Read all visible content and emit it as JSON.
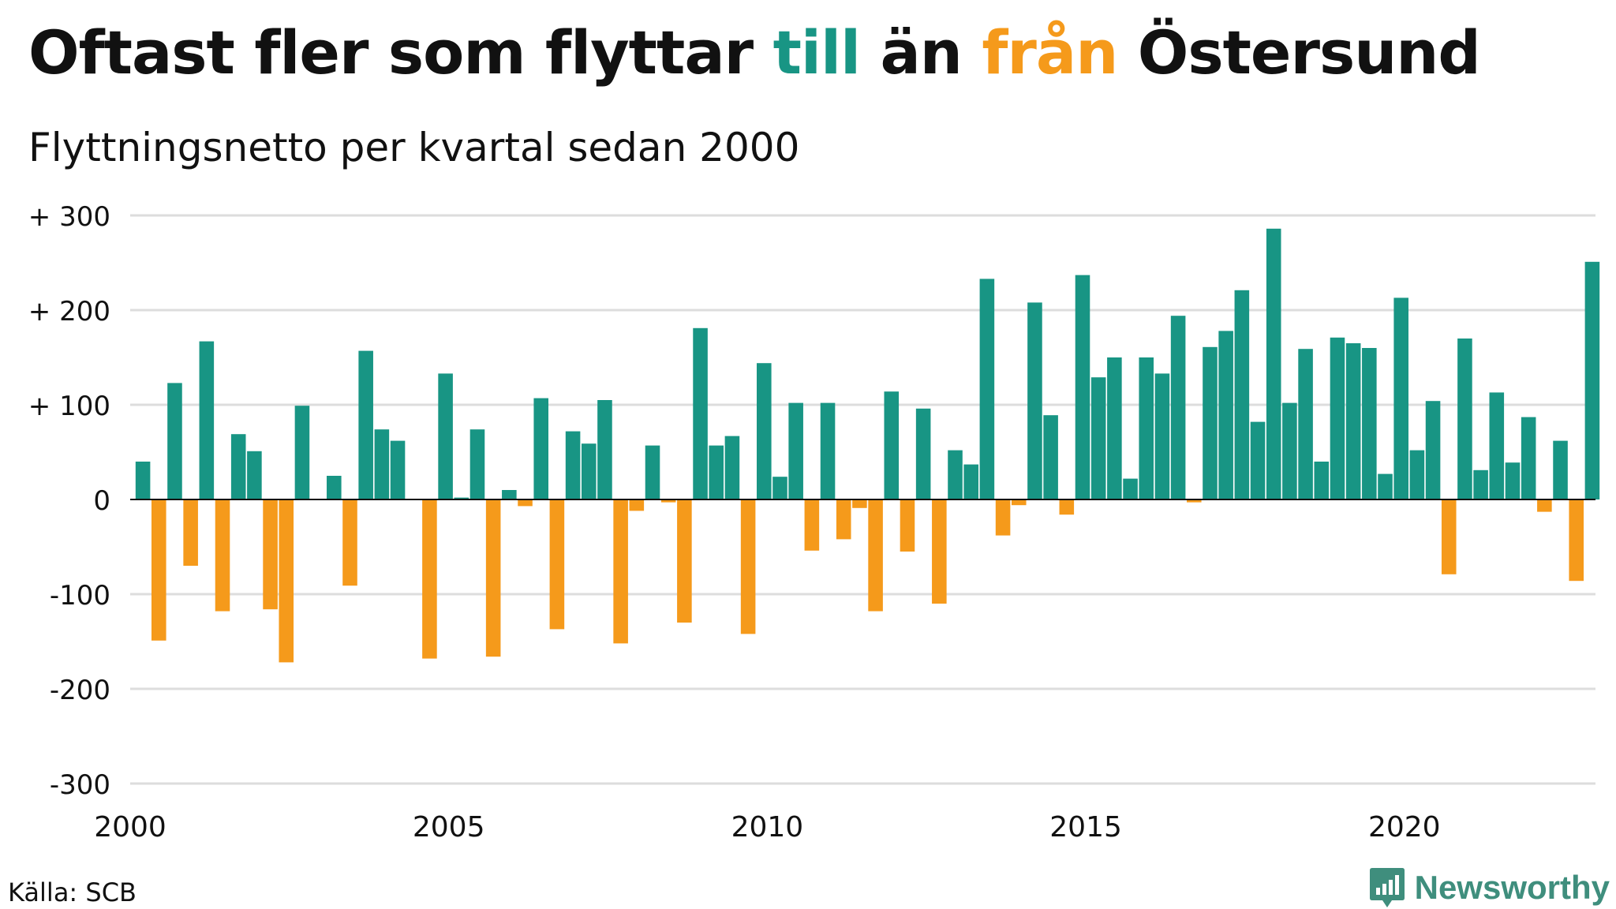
{
  "title": {
    "part1": "Oftast fler som flyttar ",
    "highlight_in": "till",
    "part2": " än ",
    "highlight_out": "från",
    "part3": " Östersund"
  },
  "subtitle": "Flyttningsnetto per kvartal sedan 2000",
  "source": "Källa: SCB",
  "brand": "Newsworthy",
  "colors": {
    "positive": "#189584",
    "negative": "#F59A1B",
    "grid": "#DDDDDD",
    "zero_line": "#111111",
    "brand": "#3F8E7D"
  },
  "chart_data": {
    "type": "bar",
    "title": "Flyttningsnetto per kvartal sedan 2000",
    "xlabel": "",
    "ylabel": "",
    "x_start": 2000,
    "periods_per_year": 4,
    "xlim": [
      2000,
      2023
    ],
    "ylim": [
      -300,
      300
    ],
    "y_ticks": [
      300,
      200,
      100,
      0,
      -100,
      -200,
      -300
    ],
    "y_tick_labels": [
      "+ 300",
      "+ 200",
      "+ 100",
      "0",
      "-100",
      "-200",
      "-300"
    ],
    "x_ticks": [
      2000,
      2005,
      2010,
      2015,
      2020
    ],
    "x_tick_labels": [
      "2000",
      "2005",
      "2010",
      "2015",
      "2020"
    ],
    "grid": true,
    "values": [
      40,
      -149,
      123,
      -70,
      167,
      -118,
      69,
      51,
      -116,
      -172,
      99,
      0,
      25,
      -91,
      157,
      74,
      62,
      0,
      -168,
      133,
      2,
      74,
      -166,
      10,
      -7,
      107,
      -137,
      72,
      59,
      105,
      -152,
      -12,
      57,
      -3,
      -130,
      181,
      57,
      67,
      -142,
      144,
      24,
      102,
      -54,
      102,
      -42,
      -9,
      -118,
      114,
      -55,
      96,
      -110,
      52,
      37,
      233,
      -38,
      -6,
      208,
      89,
      -16,
      237,
      129,
      150,
      22,
      150,
      133,
      194,
      -3,
      161,
      178,
      221,
      82,
      286,
      102,
      159,
      40,
      171,
      165,
      160,
      27,
      213,
      52,
      104,
      -79,
      170,
      31,
      113,
      39,
      87,
      -13,
      62,
      -86,
      251
    ]
  }
}
